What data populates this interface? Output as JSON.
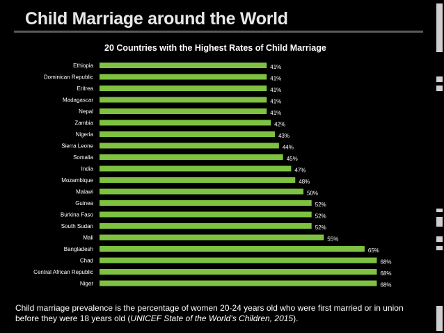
{
  "slide": {
    "title": "Child Marriage around the World"
  },
  "caption": {
    "text_before": "Child marriage prevalence is the percentage of women 20-24 years old who were first married or in union before they were 18 years old (",
    "source": "UNICEF State of the World’s Children, 2015",
    "text_after": ")."
  },
  "colors": {
    "bar": "#7fc241",
    "background": "#000000",
    "text": "#ffffff",
    "deco": "#cfcfcf"
  },
  "chart_data": {
    "type": "bar",
    "orientation": "horizontal",
    "title": "20 Countries with the Highest Rates of Child Marriage",
    "xlabel": "",
    "ylabel": "",
    "xlim": [
      0,
      70
    ],
    "grid": false,
    "categories": [
      "Ethiopia",
      "Dominican Republic",
      "Eritrea",
      "Madagascar",
      "Nepal",
      "Zambia",
      "Nigeria",
      "Sierra Leone",
      "Somalia",
      "India",
      "Mozambique",
      "Malawi",
      "Guinea",
      "Burkina Faso",
      "South Sudan",
      "Mali",
      "Bangladesh",
      "Chad",
      "Central African Republic",
      "Niger"
    ],
    "values": [
      41,
      41,
      41,
      41,
      41,
      42,
      43,
      44,
      45,
      47,
      48,
      50,
      52,
      52,
      52,
      55,
      65,
      68,
      68,
      68
    ],
    "value_labels": [
      "41%",
      "41%",
      "41%",
      "41%",
      "41%",
      "42%",
      "43%",
      "44%",
      "45%",
      "47%",
      "48%",
      "50%",
      "52%",
      "52%",
      "52%",
      "55%",
      "65%",
      "68%",
      "68%",
      "68%"
    ]
  }
}
